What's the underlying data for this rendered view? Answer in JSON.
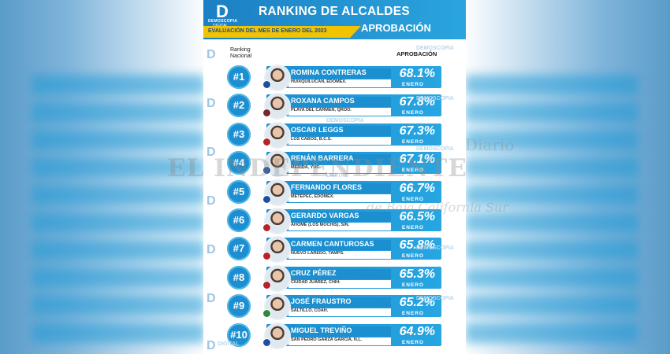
{
  "header": {
    "logo_letter": "D",
    "logo_line1": "DEMOSCOPIA",
    "logo_line2": "DIGITAL",
    "title": "RANKING DE ALCALDES",
    "subtitle": "EVALUACIÓN DEL MES DE ENERO DEL 2023",
    "approval_tag": "APROBACIÓN"
  },
  "table": {
    "rank_label_1": "Ranking",
    "rank_label_2": "Nacional",
    "approval_label": "APROBACIÓN",
    "month_label": "ENERO",
    "rows": [
      {
        "rank": "#1",
        "name": "ROMINA CONTRERAS",
        "location": "HUIXQUILUCAN, EDOMEX.",
        "approval": "68.1%",
        "party_color": "#1f4fa3"
      },
      {
        "rank": "#2",
        "name": "ROXANA CAMPOS",
        "location": "PLAYA DEL CARMEN, QROO.",
        "approval": "67.8%",
        "party_color": "#7a2530"
      },
      {
        "rank": "#3",
        "name": "OSCAR LEGGS",
        "location": "LOS CABOS, B.C.S.",
        "approval": "67.3%",
        "party_color": "#b3242b"
      },
      {
        "rank": "#4",
        "name": "RENÁN BARRERA",
        "location": "MÉRIDA, YUC.",
        "approval": "67.1%",
        "party_color": "#1f4fa3"
      },
      {
        "rank": "#5",
        "name": "FERNANDO FLORES",
        "location": "METEPEC, EDOMEX.",
        "approval": "66.7%",
        "party_color": "#1f4fa3"
      },
      {
        "rank": "#6",
        "name": "GERARDO VARGAS",
        "location": "AHOME (LOS MOCHIS), SIN.",
        "approval": "66.5%",
        "party_color": "#b3242b"
      },
      {
        "rank": "#7",
        "name": "CARMEN CANTUROSAS",
        "location": "NUEVO LAREDO, TAMPS.",
        "approval": "65.8%",
        "party_color": "#b3242b"
      },
      {
        "rank": "#8",
        "name": "CRUZ PÉREZ",
        "location": "CIUDAD JUÁREZ, CHIH.",
        "approval": "65.3%",
        "party_color": "#b3242b"
      },
      {
        "rank": "#9",
        "name": "JOSÉ FRAUSTRO",
        "location": "SALTILLO, COAH.",
        "approval": "65.2%",
        "party_color": "#2a8a3e"
      },
      {
        "rank": "#10",
        "name": "MIGUEL TREVIÑO",
        "location": "SAN PEDRO GARZA GARCIA, N.L.",
        "approval": "64.9%",
        "party_color": "#1f4fa3"
      }
    ]
  },
  "watermark": {
    "brand_line1": "DEMOSCOPIA",
    "brand_line2": "DIGITAL",
    "overlay_1": "Diario",
    "overlay_2": "EL INDEPENDIENTE",
    "overlay_3": "de Baja California Sur"
  },
  "colors": {
    "primary_blue": "#1b8fd0",
    "accent_yellow": "#f2c300",
    "subtitle_navy": "#1a4e86"
  }
}
